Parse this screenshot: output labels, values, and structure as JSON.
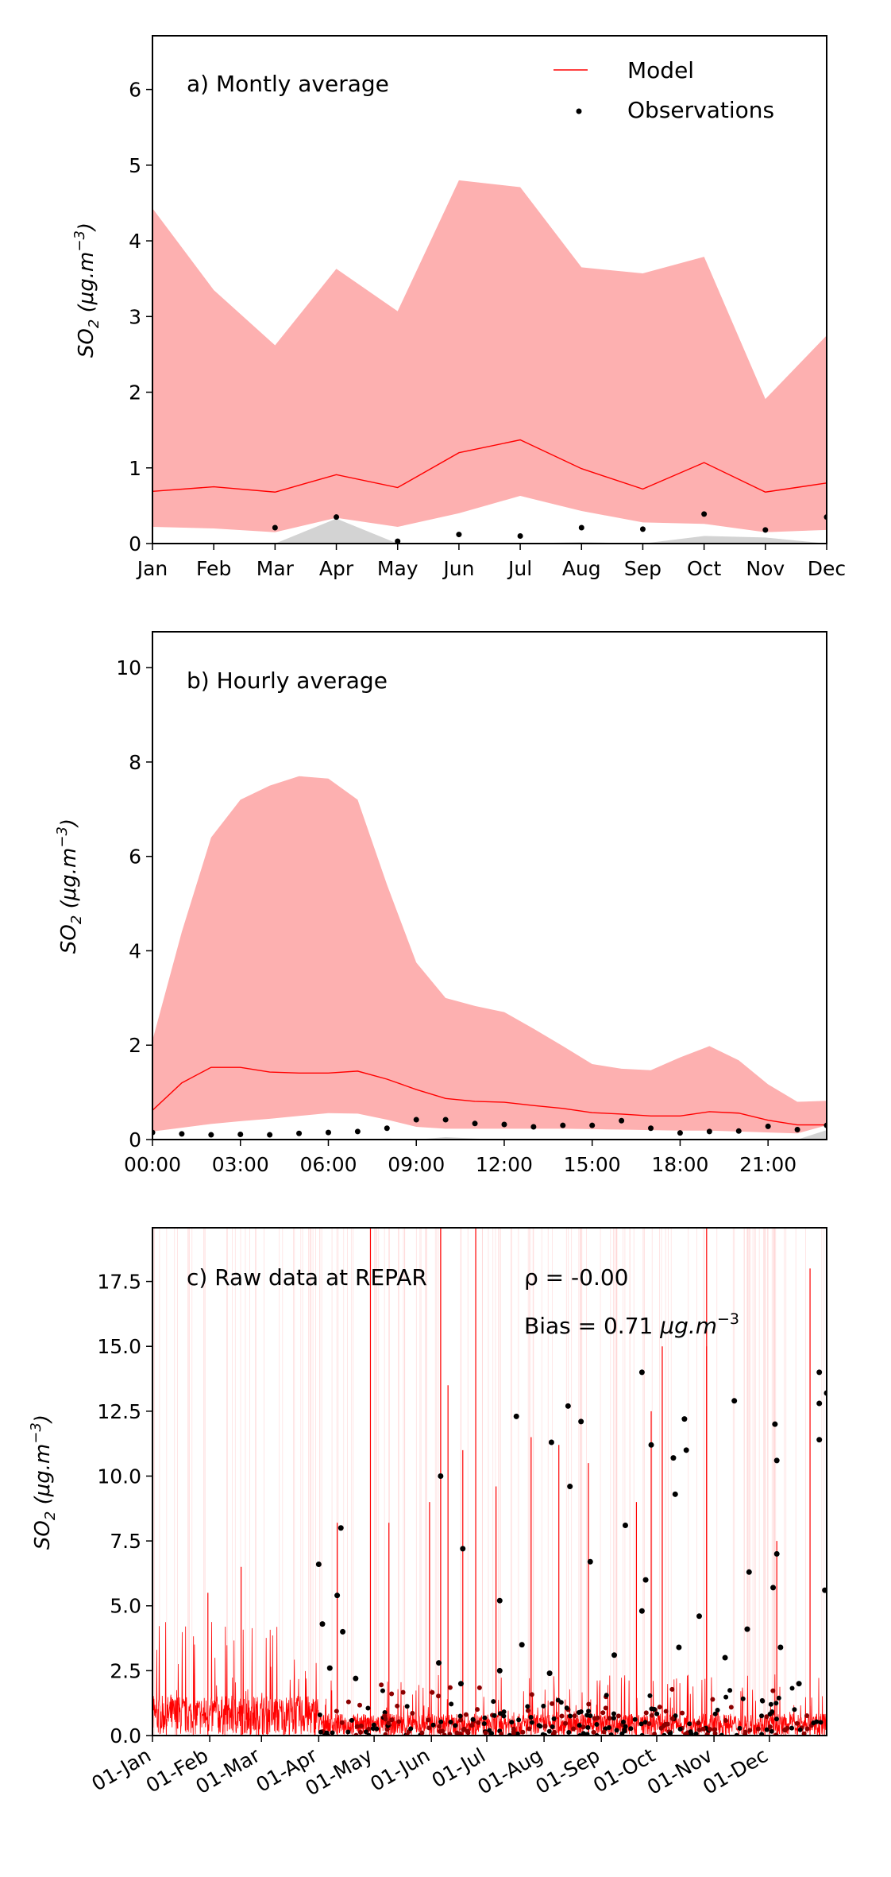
{
  "chart_data": [
    {
      "type": "line",
      "title": "a) Montly average",
      "xlabel": "",
      "ylabel": "SO2 (μg.m−3)",
      "ylabel_parts": {
        "main": "SO",
        "sub": "2",
        "unit": " (μg.m",
        "sup": "−3",
        "close": ")"
      },
      "ylim": [
        0,
        6.71
      ],
      "yticks": [
        0,
        1,
        2,
        3,
        4,
        5,
        6
      ],
      "categories": [
        "Jan",
        "Feb",
        "Mar",
        "Apr",
        "May",
        "Jun",
        "Jul",
        "Aug",
        "Sep",
        "Oct",
        "Nov",
        "Dec"
      ],
      "legend": {
        "placement": "top-right",
        "entries": [
          "Model",
          "Observations"
        ]
      },
      "series": [
        {
          "name": "Model",
          "color": "#ff0000",
          "values": [
            0.69,
            0.75,
            0.68,
            0.91,
            0.74,
            1.2,
            1.37,
            0.99,
            0.72,
            1.07,
            0.68,
            0.8
          ]
        },
        {
          "name": "Model range upper",
          "color": "#fdb0b0",
          "values": [
            4.43,
            3.35,
            2.62,
            3.63,
            3.07,
            4.8,
            4.71,
            3.65,
            3.57,
            3.79,
            1.91,
            2.75
          ]
        },
        {
          "name": "Model range lower",
          "color": "#fdb0b0",
          "values": [
            0.22,
            0.2,
            0.15,
            0.34,
            0.22,
            0.4,
            0.63,
            0.43,
            0.28,
            0.26,
            0.15,
            0.18
          ]
        },
        {
          "name": "Observations",
          "color": "#000000",
          "values": [
            null,
            null,
            0.21,
            0.35,
            0.03,
            0.12,
            0.1,
            0.21,
            0.19,
            0.39,
            0.18,
            0.35
          ]
        },
        {
          "name": "Observations range upper",
          "color": "#d3d3d3",
          "values": [
            0,
            0,
            0,
            0.33,
            0,
            0,
            0,
            0.02,
            0,
            0.1,
            0.08,
            0
          ]
        }
      ]
    },
    {
      "type": "line",
      "title": "b) Hourly average",
      "xlabel": "",
      "ylabel": "SO2 (μg.m−3)",
      "ylim": [
        0,
        10.76
      ],
      "yticks": [
        0,
        2,
        4,
        6,
        8,
        10
      ],
      "xlim": [
        0,
        23
      ],
      "xtick_values": [
        0,
        3,
        6,
        9,
        12,
        15,
        18,
        21
      ],
      "xtick_labels": [
        "00:00",
        "03:00",
        "06:00",
        "09:00",
        "12:00",
        "15:00",
        "18:00",
        "21:00"
      ],
      "x": [
        0,
        1,
        2,
        3,
        4,
        5,
        6,
        7,
        8,
        9,
        10,
        11,
        12,
        13,
        14,
        15,
        16,
        17,
        18,
        19,
        20,
        21,
        22,
        23
      ],
      "series": [
        {
          "name": "Model",
          "color": "#ff0000",
          "values": [
            0.62,
            1.2,
            1.53,
            1.53,
            1.43,
            1.41,
            1.41,
            1.45,
            1.28,
            1.06,
            0.87,
            0.81,
            0.79,
            0.72,
            0.66,
            0.57,
            0.54,
            0.5,
            0.5,
            0.59,
            0.56,
            0.41,
            0.31,
            0.31
          ]
        },
        {
          "name": "Model range upper",
          "color": "#fdb0b0",
          "values": [
            2.1,
            4.4,
            6.4,
            7.2,
            7.5,
            7.7,
            7.65,
            7.2,
            5.4,
            3.75,
            3.0,
            2.83,
            2.7,
            2.35,
            1.98,
            1.6,
            1.5,
            1.47,
            1.74,
            1.98,
            1.68,
            1.17,
            0.8,
            0.82
          ]
        },
        {
          "name": "Model range lower",
          "color": "#fdb0b0",
          "values": [
            0.17,
            0.25,
            0.33,
            0.39,
            0.44,
            0.5,
            0.56,
            0.55,
            0.42,
            0.27,
            0.23,
            0.23,
            0.23,
            0.23,
            0.23,
            0.22,
            0.21,
            0.2,
            0.19,
            0.19,
            0.17,
            0.15,
            0.13,
            0.3
          ]
        },
        {
          "name": "Observations",
          "color": "#000000",
          "values": [
            0.15,
            0.12,
            0.1,
            0.11,
            0.1,
            0.13,
            0.15,
            0.17,
            0.24,
            0.42,
            0.42,
            0.34,
            0.32,
            0.27,
            0.3,
            0.3,
            0.4,
            0.24,
            0.14,
            0.17,
            0.18,
            0.28,
            0.21,
            0.3
          ]
        },
        {
          "name": "Observations range upper",
          "color": "#d3d3d3",
          "values": [
            0,
            0,
            0,
            0,
            0,
            0,
            0,
            0,
            0.02,
            0,
            0.05,
            0.02,
            0,
            0,
            0,
            0,
            0,
            0,
            0,
            0,
            0,
            0,
            0,
            0.2
          ]
        }
      ]
    },
    {
      "type": "line",
      "title": "c) Raw data at REPAR",
      "annotations": {
        "rho": "ρ = -0.00",
        "bias_prefix": "Bias = 0.71 ",
        "bias_unit": "μg.m",
        "bias_sup": "−3"
      },
      "xlabel": "",
      "ylabel": "SO2 (μg.m−3)",
      "ylim": [
        0,
        19.57
      ],
      "yticks": [
        0,
        2.5,
        5.0,
        7.5,
        10.0,
        12.5,
        15.0,
        17.5
      ],
      "ytick_labels": [
        "0.0",
        "2.5",
        "5.0",
        "7.5",
        "10.0",
        "12.5",
        "15.0",
        "17.5"
      ],
      "xlim_days": [
        0,
        365
      ],
      "xtick_days": [
        0,
        31,
        59,
        90,
        120,
        151,
        181,
        212,
        243,
        273,
        304,
        334
      ],
      "xtick_labels": [
        "01-Jan",
        "01-Feb",
        "01-Mar",
        "01-Apr",
        "01-May",
        "01-Jun",
        "01-Jul",
        "01-Aug",
        "01-Sep",
        "01-Oct",
        "01-Nov",
        "01-Dec"
      ],
      "model_color": "#ff0000",
      "model_peaks": [
        [
          30,
          5.5
        ],
        [
          48,
          6.5
        ],
        [
          100,
          8.2
        ],
        [
          118,
          19.6
        ],
        [
          128,
          8.2
        ],
        [
          150,
          9
        ],
        [
          156,
          19.6
        ],
        [
          160,
          13.5
        ],
        [
          168,
          11
        ],
        [
          175,
          19.6
        ],
        [
          186,
          9.6
        ],
        [
          205,
          11.5
        ],
        [
          220,
          11.2
        ],
        [
          236,
          10.5
        ],
        [
          270,
          12.5
        ],
        [
          276,
          15
        ],
        [
          300,
          15
        ],
        [
          338,
          7.5
        ],
        [
          356,
          18
        ],
        [
          300,
          19.6
        ],
        [
          262,
          9
        ]
      ],
      "observations": [
        [
          90,
          6.6
        ],
        [
          102,
          8.0
        ],
        [
          156,
          10.0
        ],
        [
          168,
          7.2
        ],
        [
          197,
          12.3
        ],
        [
          188,
          5.2
        ],
        [
          225,
          12.7
        ],
        [
          232,
          12.1
        ],
        [
          226,
          9.6
        ],
        [
          216,
          11.3
        ],
        [
          237,
          6.7
        ],
        [
          256,
          8.1
        ],
        [
          265,
          14.0
        ],
        [
          270,
          11.2
        ],
        [
          288,
          12.2
        ],
        [
          282,
          10.7
        ],
        [
          289,
          11.0
        ],
        [
          315,
          12.9
        ],
        [
          337,
          12.0
        ],
        [
          338,
          10.6
        ],
        [
          361,
          14.0
        ],
        [
          361,
          12.8
        ],
        [
          361,
          11.4
        ],
        [
          365,
          13.2
        ],
        [
          338,
          7.0
        ],
        [
          323,
          6.3
        ],
        [
          267,
          6.0
        ],
        [
          283,
          9.3
        ],
        [
          92,
          4.3
        ],
        [
          96,
          2.6
        ],
        [
          100,
          5.4
        ],
        [
          103,
          4.0
        ],
        [
          110,
          2.2
        ],
        [
          155,
          2.8
        ],
        [
          167,
          2.0
        ],
        [
          188,
          2.5
        ],
        [
          200,
          3.5
        ],
        [
          215,
          2.4
        ],
        [
          250,
          3.1
        ],
        [
          265,
          4.8
        ],
        [
          285,
          3.4
        ],
        [
          296,
          4.6
        ],
        [
          310,
          3.0
        ],
        [
          322,
          4.1
        ],
        [
          336,
          5.7
        ],
        [
          340,
          3.4
        ],
        [
          350,
          2.0
        ],
        [
          364,
          5.6
        ]
      ]
    }
  ]
}
